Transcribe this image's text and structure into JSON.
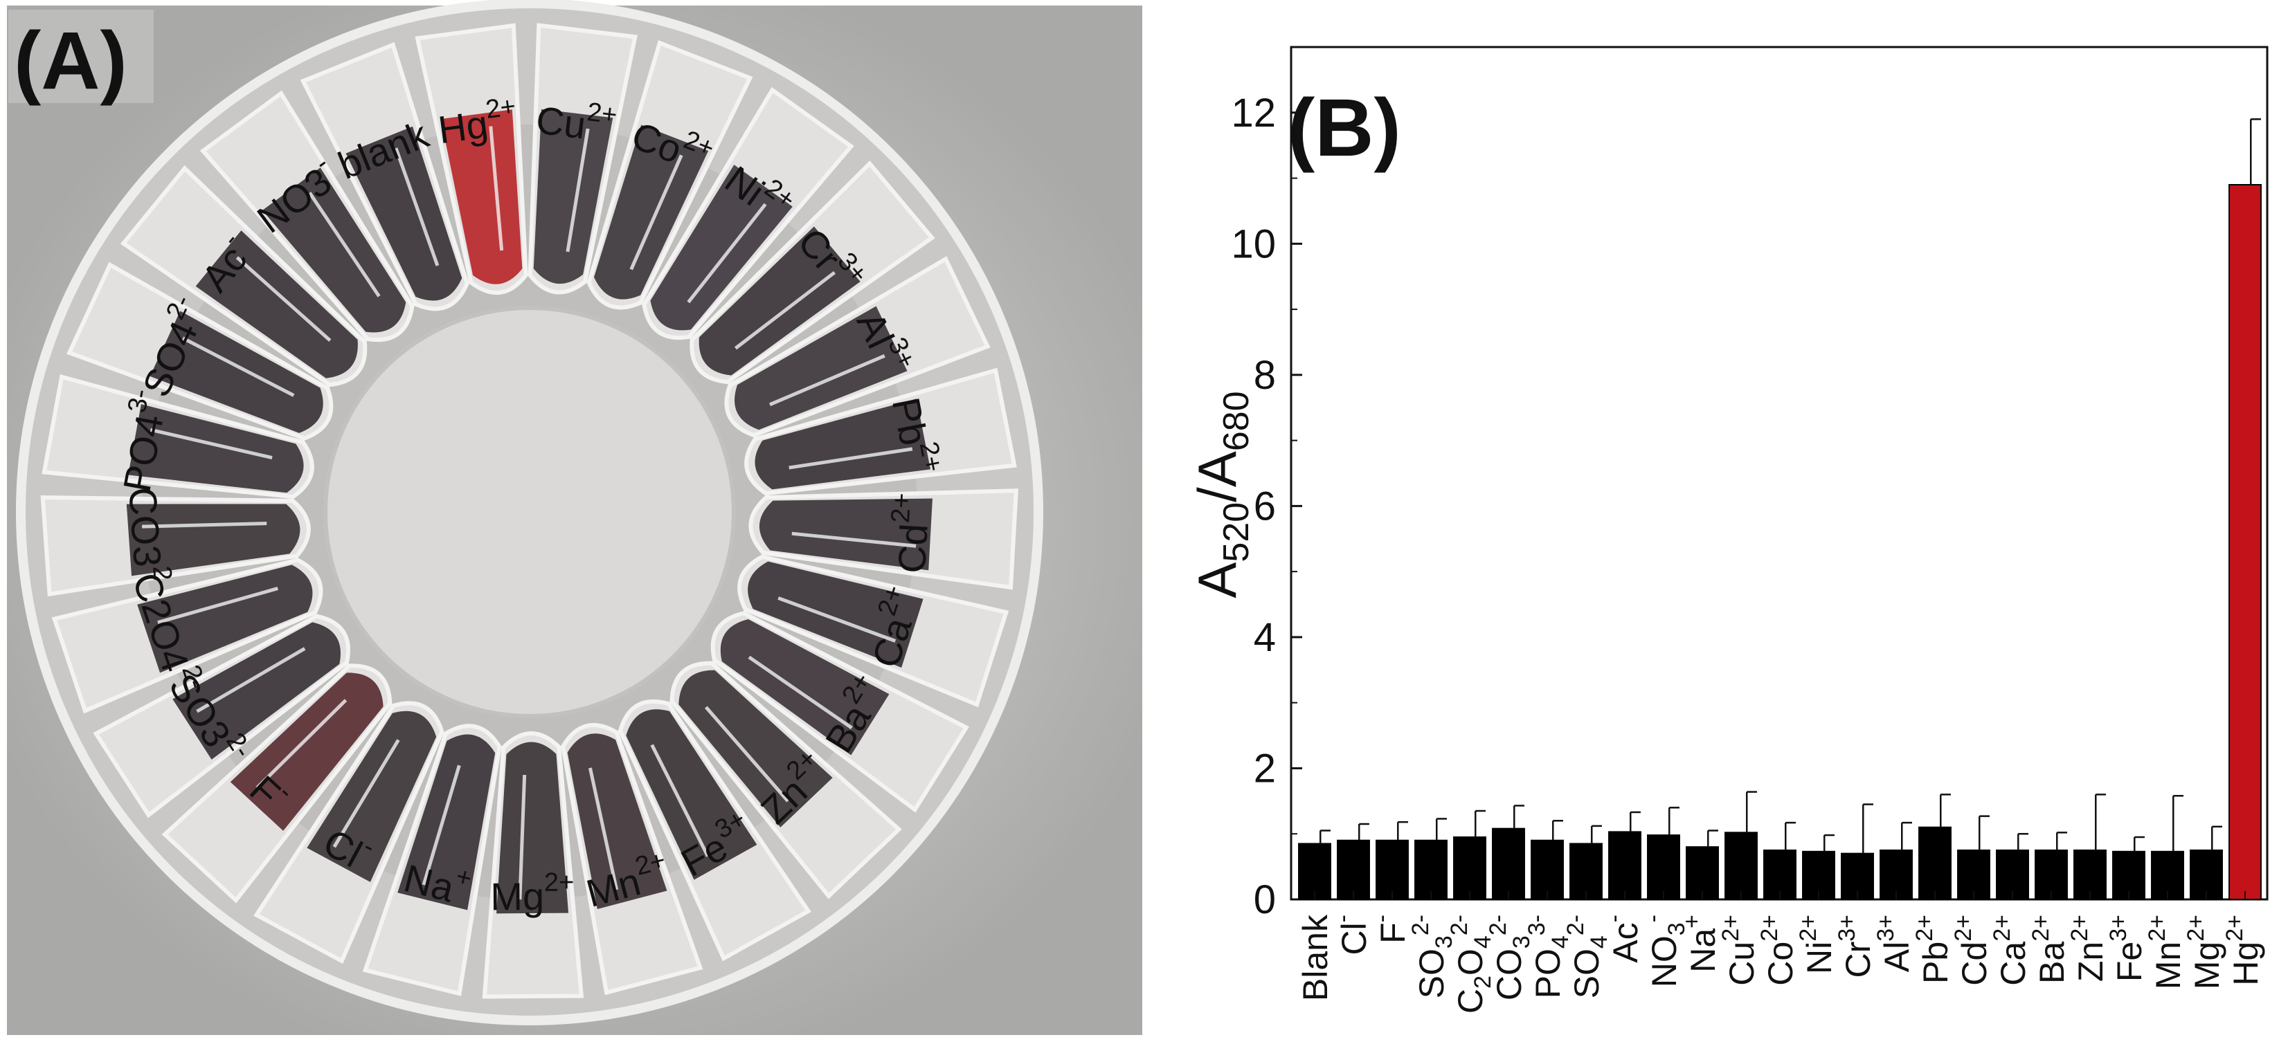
{
  "panel_a": {
    "label": "(A)",
    "tube_labels": [
      {
        "id": "blank",
        "text": "blank",
        "charge": "",
        "tint": "#3a3338"
      },
      {
        "id": "hg",
        "text": "Hg",
        "charge": "2+",
        "tint": "#b8282b"
      },
      {
        "id": "cu",
        "text": "Cu",
        "charge": "2+",
        "tint": "#403a3f"
      },
      {
        "id": "co",
        "text": "Co",
        "charge": "2+",
        "tint": "#3d373c"
      },
      {
        "id": "ni",
        "text": "Ni",
        "charge": "2+",
        "tint": "#403a40"
      },
      {
        "id": "cr",
        "text": "Cr",
        "charge": "3+",
        "tint": "#3b3439"
      },
      {
        "id": "al",
        "text": "Al",
        "charge": "3+",
        "tint": "#3e373c"
      },
      {
        "id": "pb",
        "text": "Pb",
        "charge": "2+",
        "tint": "#3a3338"
      },
      {
        "id": "cd",
        "text": "Cd",
        "charge": "2+",
        "tint": "#3c3539"
      },
      {
        "id": "ca",
        "text": "Ca",
        "charge": "2+",
        "tint": "#3a3337"
      },
      {
        "id": "ba",
        "text": "Ba",
        "charge": "2+",
        "tint": "#3e3539"
      },
      {
        "id": "zn",
        "text": "Zn",
        "charge": "2+",
        "tint": "#3d3538"
      },
      {
        "id": "fe",
        "text": "Fe",
        "charge": "3+",
        "tint": "#3b3336"
      },
      {
        "id": "mn",
        "text": "Mn",
        "charge": "2+",
        "tint": "#3f3438"
      },
      {
        "id": "mg",
        "text": "Mg",
        "charge": "2+",
        "tint": "#3b3437"
      },
      {
        "id": "na",
        "text": "Na",
        "charge": "+",
        "tint": "#3a3337"
      },
      {
        "id": "cl",
        "text": "Cl",
        "charge": "-",
        "tint": "#3c3538"
      },
      {
        "id": "f",
        "text": "F",
        "charge": "-",
        "tint": "#5a2f33"
      },
      {
        "id": "so3",
        "text": "SO3",
        "charge": "2-",
        "tint": "#3a3337"
      },
      {
        "id": "c2o4",
        "text": "C2O4",
        "charge": "2-",
        "tint": "#3b3438"
      },
      {
        "id": "co3",
        "text": "CO3",
        "charge": "2-",
        "tint": "#3d3538"
      },
      {
        "id": "po4",
        "text": "PO4",
        "charge": "3-",
        "tint": "#3c3539"
      },
      {
        "id": "so4",
        "text": "SO4",
        "charge": "2-",
        "tint": "#3a3338"
      },
      {
        "id": "ac",
        "text": "Ac",
        "charge": "-",
        "tint": "#3b3438"
      },
      {
        "id": "no3",
        "text": "NO3",
        "charge": "-",
        "tint": "#3c3539"
      }
    ]
  },
  "chart_data": {
    "type": "bar",
    "panel_label": "(B)",
    "ylabel": "A520/A680",
    "ylabel_main": "A",
    "ylabel_sub1": "520",
    "ylabel_sep": "/A",
    "ylabel_sub2": "680",
    "xlabel": "",
    "ylim": [
      0,
      13
    ],
    "yticks": [
      0,
      2,
      4,
      6,
      8,
      10,
      12
    ],
    "categories": [
      "Blank",
      "Cl-",
      "F-",
      "SO32-",
      "C2O42-",
      "CO32-",
      "PO43-",
      "SO42-",
      "Ac-",
      "NO3-",
      "Na+",
      "Cu2+",
      "Co2+",
      "Ni2+",
      "Cr3+",
      "Al3+",
      "Pb2+",
      "Cd2+",
      "Ca2+",
      "Ba2+",
      "Zn2+",
      "Fe3+",
      "Mn2+",
      "Mg2+",
      "Hg2+"
    ],
    "category_parts": [
      {
        "b": "Blank",
        "s": "",
        "p": ""
      },
      {
        "b": "Cl",
        "s": "",
        "p": "-"
      },
      {
        "b": "F",
        "s": "",
        "p": "-"
      },
      {
        "b": "SO",
        "s": "3",
        "p": "2-"
      },
      {
        "b": "C",
        "s": "2",
        "b2": "O",
        "s2": "4",
        "p": "2-"
      },
      {
        "b": "CO",
        "s": "3",
        "p": "2-"
      },
      {
        "b": "PO",
        "s": "4",
        "p": "3-"
      },
      {
        "b": "SO",
        "s": "4",
        "p": "2-"
      },
      {
        "b": "Ac",
        "s": "",
        "p": "-"
      },
      {
        "b": "NO",
        "s": "3",
        "p": "-"
      },
      {
        "b": "Na",
        "s": "",
        "p": "+"
      },
      {
        "b": "Cu",
        "s": "",
        "p": "2+"
      },
      {
        "b": "Co",
        "s": "",
        "p": "2+"
      },
      {
        "b": "Ni",
        "s": "",
        "p": "2+"
      },
      {
        "b": "Cr",
        "s": "",
        "p": "3+"
      },
      {
        "b": "Al",
        "s": "",
        "p": "3+"
      },
      {
        "b": "Pb",
        "s": "",
        "p": "2+"
      },
      {
        "b": "Cd",
        "s": "",
        "p": "2+"
      },
      {
        "b": "Ca",
        "s": "",
        "p": "2+"
      },
      {
        "b": "Ba",
        "s": "",
        "p": "2+"
      },
      {
        "b": "Zn",
        "s": "",
        "p": "2+"
      },
      {
        "b": "Fe",
        "s": "",
        "p": "3+"
      },
      {
        "b": "Mn",
        "s": "",
        "p": "2+"
      },
      {
        "b": "Mg",
        "s": "",
        "p": "2+"
      },
      {
        "b": "Hg",
        "s": "",
        "p": "2+"
      }
    ],
    "values": [
      0.85,
      0.9,
      0.9,
      0.9,
      0.95,
      1.08,
      0.9,
      0.85,
      1.03,
      0.98,
      0.8,
      1.02,
      0.75,
      0.73,
      0.7,
      0.75,
      1.1,
      0.75,
      0.75,
      0.75,
      0.75,
      0.73,
      0.73,
      0.75,
      10.9
    ],
    "errors": [
      0.2,
      0.25,
      0.28,
      0.33,
      0.4,
      0.35,
      0.3,
      0.27,
      0.3,
      0.42,
      0.25,
      0.62,
      0.42,
      0.25,
      0.75,
      0.42,
      0.5,
      0.52,
      0.25,
      0.27,
      0.85,
      0.22,
      0.85,
      0.36,
      1.0
    ],
    "bar_color": "#000000",
    "highlight_color": "#c3121a",
    "highlight_index": 24,
    "grid": false,
    "legend": "none"
  }
}
